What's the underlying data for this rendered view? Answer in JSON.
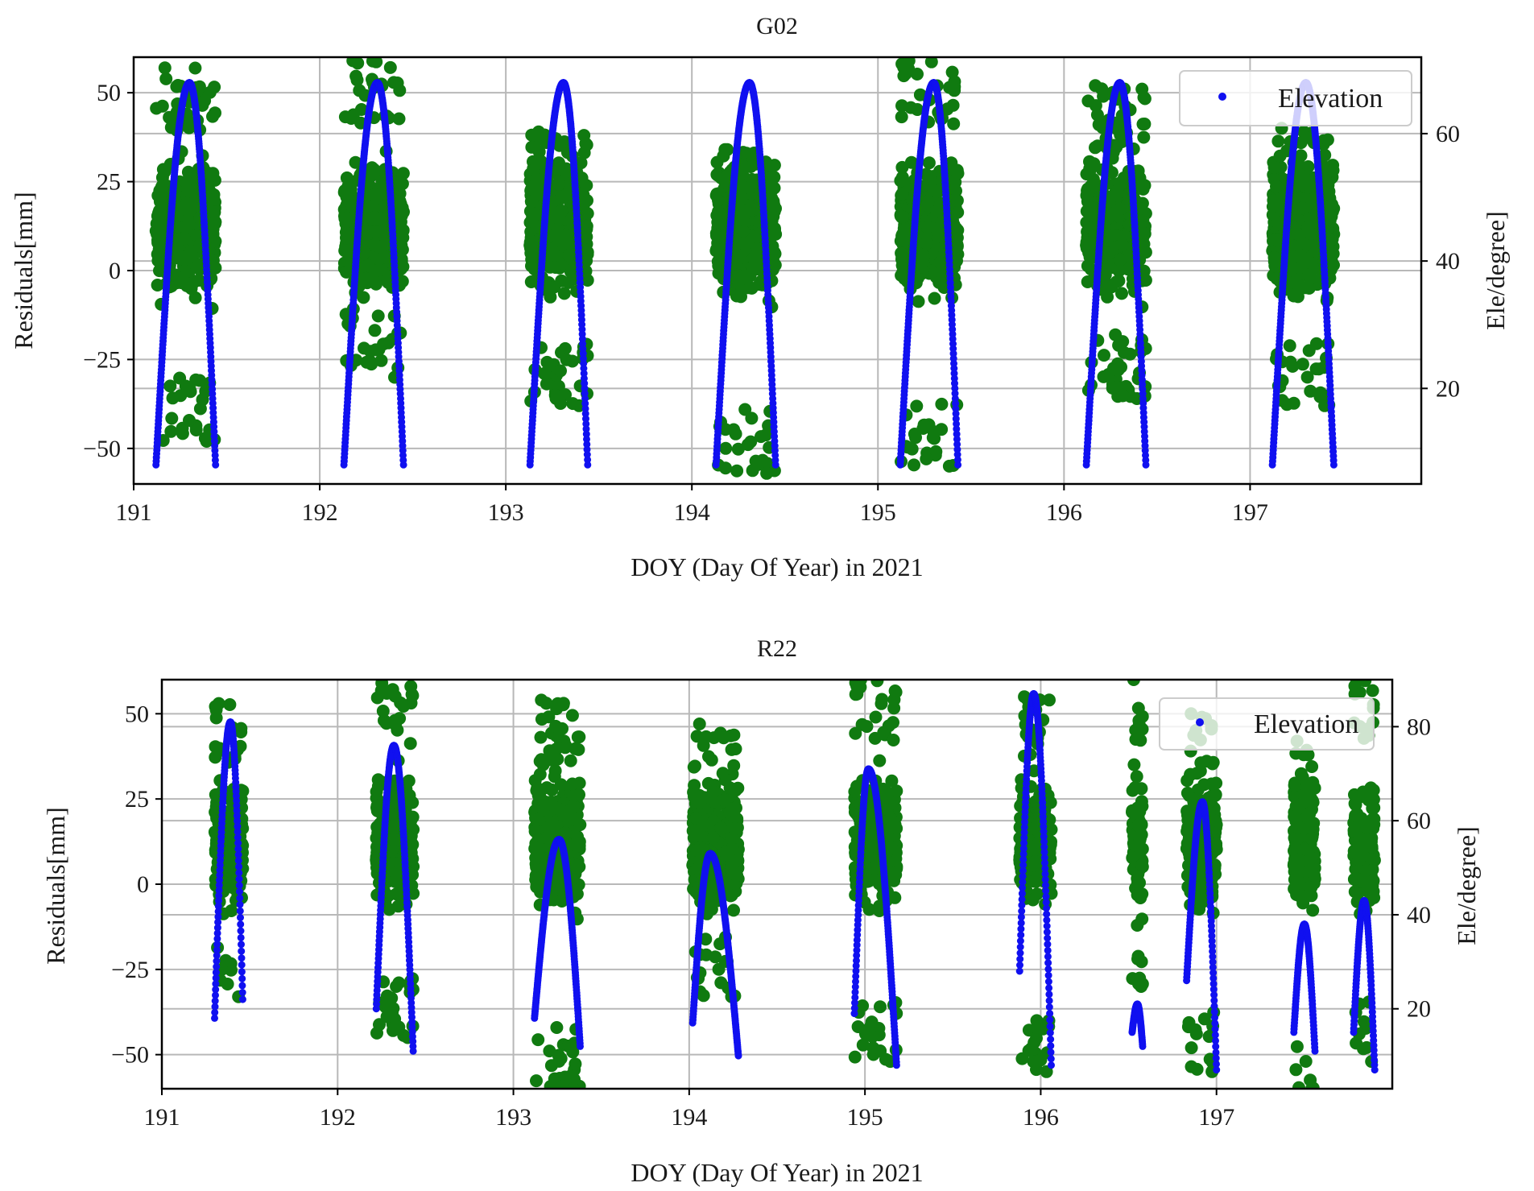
{
  "chart_data": [
    {
      "type": "scatter",
      "title": "G02",
      "xlabel": "DOY (Day Of Year) in 2021",
      "ylabel": "Residuals[mm]",
      "y2label": "Ele/degree]",
      "xlim": [
        191.0,
        197.92
      ],
      "ylim": [
        -60,
        60
      ],
      "y2lim": [
        5,
        72
      ],
      "xticks": [
        191,
        192,
        193,
        194,
        195,
        196,
        197
      ],
      "xtick_labels": [
        "191",
        "192",
        "193",
        "194",
        "195",
        "196",
        "197"
      ],
      "yticks": [
        -50,
        -25,
        0,
        25,
        50
      ],
      "ytick_labels": [
        "−50",
        "−25",
        "0",
        "25",
        "50"
      ],
      "y2ticks": [
        20,
        40,
        60
      ],
      "y2tick_labels": [
        "20",
        "40",
        "60"
      ],
      "grid": true,
      "legend": {
        "label": "Elevation",
        "position": "top-right"
      },
      "colors": {
        "residuals": "#107a10",
        "elevation": "#1010f0"
      },
      "passes": [
        {
          "start": 191.12,
          "peak": 191.3,
          "end": 191.44,
          "max_ele": 68,
          "res_min": -48,
          "res_max": 57
        },
        {
          "start": 192.13,
          "peak": 192.31,
          "end": 192.45,
          "max_ele": 68,
          "res_min": -30,
          "res_max": 59
        },
        {
          "start": 193.13,
          "peak": 193.31,
          "end": 193.44,
          "max_ele": 68,
          "res_min": -38,
          "res_max": 39
        },
        {
          "start": 194.13,
          "peak": 194.31,
          "end": 194.45,
          "max_ele": 68,
          "res_min": -57,
          "res_max": 34
        },
        {
          "start": 195.12,
          "peak": 195.3,
          "end": 195.43,
          "max_ele": 68,
          "res_min": -55,
          "res_max": 59
        },
        {
          "start": 196.12,
          "peak": 196.3,
          "end": 196.44,
          "max_ele": 68,
          "res_min": -36,
          "res_max": 52
        },
        {
          "start": 197.12,
          "peak": 197.3,
          "end": 197.45,
          "max_ele": 68,
          "res_min": -38,
          "res_max": 40
        }
      ]
    },
    {
      "type": "scatter",
      "title": "R22",
      "xlabel": "DOY (Day Of Year) in 2021",
      "ylabel": "Residuals[mm]",
      "y2label": "Ele/degree]",
      "xlim": [
        191.0,
        198.0
      ],
      "ylim": [
        -60,
        60
      ],
      "y2lim": [
        3,
        90
      ],
      "xticks": [
        191,
        192,
        193,
        194,
        195,
        196,
        197
      ],
      "xtick_labels": [
        "191",
        "192",
        "193",
        "194",
        "195",
        "196",
        "197"
      ],
      "yticks": [
        -50,
        -25,
        0,
        25,
        50
      ],
      "ytick_labels": [
        "−50",
        "−25",
        "0",
        "25",
        "50"
      ],
      "y2ticks": [
        20,
        40,
        60,
        80
      ],
      "y2tick_labels": [
        "20",
        "40",
        "60",
        "80"
      ],
      "grid": true,
      "legend": {
        "label": "Elevation",
        "position": "top-right"
      },
      "colors": {
        "residuals": "#107a10",
        "elevation": "#1010f0"
      },
      "passes": [
        {
          "start": 191.3,
          "peak": 191.39,
          "end": 191.46,
          "ele_start": 18,
          "max_ele": 81,
          "ele_end": 22,
          "res_min": -33,
          "res_max": 53
        },
        {
          "start": 192.22,
          "peak": 192.32,
          "end": 192.43,
          "ele_start": 20,
          "max_ele": 76,
          "ele_end": 11,
          "res_min": -45,
          "res_max": 59
        },
        {
          "start": 193.12,
          "peak": 193.26,
          "end": 193.38,
          "ele_start": 18,
          "max_ele": 56,
          "ele_end": 12,
          "res_min": -60,
          "res_max": 54
        },
        {
          "start": 194.02,
          "peak": 194.12,
          "end": 194.28,
          "ele_start": 17,
          "max_ele": 53,
          "ele_end": 10,
          "res_min": -33,
          "res_max": 47
        },
        {
          "start": 194.94,
          "peak": 195.02,
          "end": 195.18,
          "ele_start": 19,
          "max_ele": 71,
          "ele_end": 8,
          "res_min": -52,
          "res_max": 60
        },
        {
          "start": 195.88,
          "peak": 195.96,
          "end": 196.06,
          "ele_start": 28,
          "max_ele": 87,
          "ele_end": 8,
          "res_min": -55,
          "res_max": 55
        },
        {
          "start": 196.52,
          "peak": 196.55,
          "end": 196.58,
          "ele_start": 15,
          "max_ele": 21,
          "ele_end": 12,
          "res_min": -30,
          "res_max": 60
        },
        {
          "start": 196.83,
          "peak": 196.92,
          "end": 197.0,
          "ele_start": 26,
          "max_ele": 64,
          "ele_end": 7,
          "res_min": -55,
          "res_max": 50
        },
        {
          "start": 197.44,
          "peak": 197.5,
          "end": 197.56,
          "ele_start": 15,
          "max_ele": 38,
          "ele_end": 11,
          "res_min": -60,
          "res_max": 42
        },
        {
          "start": 197.78,
          "peak": 197.84,
          "end": 197.9,
          "ele_start": 15,
          "max_ele": 43,
          "ele_end": 7,
          "res_min": -52,
          "res_max": 60
        }
      ]
    }
  ]
}
